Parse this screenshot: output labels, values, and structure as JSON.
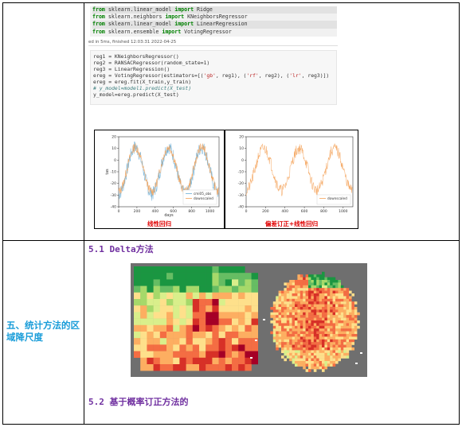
{
  "code_block_1": {
    "lines": [
      {
        "kw1": "from",
        "mod": " sklearn.linear_model ",
        "kw2": "import",
        "name": " Ridge"
      },
      {
        "kw1": "from",
        "mod": " sklearn.neighbors ",
        "kw2": "import",
        "name": " KNeighborsRegressor"
      },
      {
        "kw1": "from",
        "mod": " sklearn.linear_model ",
        "kw2": "import",
        "name": " LinearRegression"
      },
      {
        "kw1": "from",
        "mod": " sklearn.ensemble ",
        "kw2": "import",
        "name": " VotingRegressor"
      }
    ]
  },
  "run_status": "ed in 5ms, finished 12:03:31 2022-04-25",
  "code_block_2": {
    "line1": "reg1 = KNeighborsRegressor()",
    "line2": "reg2 = RANSACRegressor(random_state=1)",
    "line3": "reg3 = LinearRegression()",
    "line4_a": "ereg = VotingRegressor(estimators=[(",
    "line4_s1": "'gb'",
    "line4_b": ", reg1), (",
    "line4_s2": "'rf'",
    "line4_c": ", reg2), (",
    "line4_s3": "'lr'",
    "line4_d": ", reg3)])",
    "line5": "ereg = ereg.fit(X_train,y_train)",
    "line6": "# y_model=model1.predict(X_test)",
    "line7": "y_model=ereg.predict(X_test)"
  },
  "chart_data": [
    {
      "type": "line",
      "xlabel": "days",
      "ylabel": "tas",
      "xlim": [
        0,
        1100
      ],
      "ylim": [
        -40,
        20
      ],
      "x_ticks": [
        0,
        200,
        400,
        600,
        800,
        1000
      ],
      "y_ticks": [
        20,
        10,
        0,
        -10,
        -20,
        -30,
        -40
      ],
      "legend_position": "lower-right",
      "series": [
        {
          "name": "cmi05_obs",
          "color": "#6baed6"
        },
        {
          "name": "downscaled",
          "color": "#f4a259"
        }
      ],
      "caption": "线性回归"
    },
    {
      "type": "line",
      "xlabel": "",
      "ylabel": "",
      "xlim": [
        0,
        1100
      ],
      "ylim": [
        -40,
        20
      ],
      "x_ticks": [
        0,
        200,
        400,
        600,
        800,
        1000
      ],
      "y_ticks": [
        20,
        10,
        0,
        -10,
        -20,
        -30,
        -40
      ],
      "legend_position": "lower-right",
      "series": [
        {
          "name": "downscaled",
          "color": "#f4a259"
        }
      ],
      "caption": "偏差订正+线性回归"
    }
  ],
  "section": {
    "side_title": "五、统计方法的区域降尺度",
    "heading_1": "5.1 Delta方法",
    "heading_2": "5.2 基于概率订正方法的"
  },
  "colors": {
    "map_bg": "#6f6f6f",
    "section_heading": "#7030a0",
    "side_title": "#1a9dd9",
    "caption": "#e00000"
  }
}
